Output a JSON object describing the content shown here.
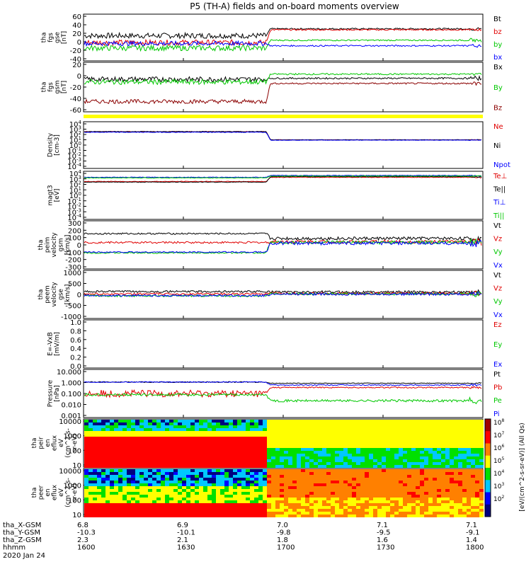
{
  "title": "P5 (TH-A) fields and on-board moments overview",
  "footer": {
    "rows": [
      {
        "label": "tha_X-GSM",
        "values": [
          "6.8",
          "6.9",
          "7.0",
          "7.1",
          "7.1"
        ]
      },
      {
        "label": "tha_Y-GSM",
        "values": [
          "-10.3",
          "-10.1",
          "-9.8",
          "-9.5",
          "-9.1"
        ]
      },
      {
        "label": "tha_Z-GSM",
        "values": [
          "2.3",
          "2.1",
          "1.8",
          "1.6",
          "1.4"
        ]
      },
      {
        "label": "hhmm",
        "values": [
          "1600",
          "1630",
          "1700",
          "1730",
          "1800"
        ]
      }
    ],
    "date": "2020 Jan 24"
  },
  "colors": {
    "black": "#000000",
    "red": "#e00000",
    "green": "#00c800",
    "blue": "#0000ff",
    "maroon": "#8b0000",
    "yellow": "#ffff00"
  },
  "colorbar": {
    "ticks": [
      "10^8",
      "10^7",
      "10^6",
      "10^5",
      "10^4",
      "10^3",
      "10^2"
    ],
    "label": "[eV/(cm^2-s-sr-eV)] (All Qs)"
  },
  "chart_data": [
    {
      "type": "line",
      "id": "fgs-gse",
      "ylabel_lines": [
        "tha",
        "fgs",
        "gse",
        "[nT]"
      ],
      "yticks": [
        "60",
        "40",
        "20",
        "0",
        "-20",
        "-40"
      ],
      "ylim": [
        -40,
        62
      ],
      "series": [
        {
          "name": "Bt",
          "color": "#000000",
          "pre": 15,
          "post": 30,
          "noise_pre": 6,
          "noise_post": 1.5
        },
        {
          "name": "bz",
          "color": "#e00000",
          "pre": 0,
          "post": 28,
          "noise_pre": 6,
          "noise_post": 1.5
        },
        {
          "name": "by",
          "color": "#00c800",
          "pre": -12,
          "post": 5,
          "noise_pre": 6,
          "noise_post": 1.5
        },
        {
          "name": "bx",
          "color": "#0000ff",
          "pre": -2,
          "post": -7,
          "noise_pre": 5,
          "noise_post": 1.5
        }
      ]
    },
    {
      "type": "line",
      "id": "fgs-gsm",
      "ylabel_lines": [
        "tha",
        "fgs",
        "gsm",
        "[nT]"
      ],
      "yticks": [
        "20",
        "0",
        "-20",
        "-40",
        "-60"
      ],
      "ylim": [
        -68,
        28
      ],
      "series": [
        {
          "name": "Bx",
          "color": "#000000",
          "pre": -5,
          "post": -3,
          "noise_pre": 5,
          "noise_post": 1.5
        },
        {
          "name": "By",
          "color": "#00c800",
          "pre": -10,
          "post": 5,
          "noise_pre": 5,
          "noise_post": 1.5
        },
        {
          "name": "Bz",
          "color": "#8b0000",
          "pre": -48,
          "post": -13,
          "noise_pre": 4,
          "noise_post": 1.5
        }
      ]
    },
    {
      "type": "line",
      "id": "density",
      "ylabel_lines": [
        "Density",
        "[cm-3]"
      ],
      "yticks": [
        "10^4",
        "10^3",
        "10^2",
        "10^1",
        "10^0",
        "10^-1",
        "10^-2",
        "10^-3",
        "10^-4"
      ],
      "ylim": [
        -4,
        4
      ],
      "log": true,
      "series": [
        {
          "name": "Ne",
          "color": "#e00000",
          "pre": 2.3,
          "post": 0.9,
          "noise_pre": 0.05,
          "noise_post": 0.03
        },
        {
          "name": "Ni",
          "color": "#000000",
          "pre": 2.3,
          "post": 0.9,
          "noise_pre": 0.05,
          "noise_post": 0.03
        },
        {
          "name": "Npot",
          "color": "#0000ff",
          "pre": 2.2,
          "post": 0.85,
          "noise_pre": 0.05,
          "noise_post": 0.03
        }
      ]
    },
    {
      "type": "line",
      "id": "temperature",
      "ylabel_lines": [
        "magt3",
        "[eV]"
      ],
      "yticks": [
        "10^4",
        "10^3",
        "10^2",
        "10^1",
        "10^0",
        "10^-1",
        "10^-2",
        "10^-3",
        "10^-4"
      ],
      "ylim": [
        -4,
        4
      ],
      "log": true,
      "series": [
        {
          "name": "Te⊥",
          "color": "#e00000",
          "pre": 2.3,
          "post": 3.0,
          "noise_pre": 0.05,
          "noise_post": 0.05
        },
        {
          "name": "Te||",
          "color": "#000000",
          "pre": 2.2,
          "post": 3.1,
          "noise_pre": 0.05,
          "noise_post": 0.05
        },
        {
          "name": "Ti⊥",
          "color": "#0000ff",
          "pre": 3.0,
          "post": 3.3,
          "noise_pre": 0.05,
          "noise_post": 0.05
        },
        {
          "name": "Ti||",
          "color": "#00c800",
          "pre": 2.9,
          "post": 3.2,
          "noise_pre": 0.05,
          "noise_post": 0.05
        }
      ]
    },
    {
      "type": "line",
      "id": "peim-velocity",
      "ylabel_lines": [
        "tha",
        "peim",
        "velocity",
        "gsm",
        "[km/s]"
      ],
      "yticks": [
        "300",
        "200",
        "100",
        "0",
        "-100",
        "-200",
        "-300"
      ],
      "ylim": [
        -300,
        300
      ],
      "series": [
        {
          "name": "Vt",
          "color": "#000000",
          "pre": 140,
          "post": 80,
          "noise_pre": 10,
          "noise_post": 20
        },
        {
          "name": "Vz",
          "color": "#e00000",
          "pre": 30,
          "post": 40,
          "noise_pre": 12,
          "noise_post": 20
        },
        {
          "name": "Vy",
          "color": "#00c800",
          "pre": -100,
          "post": 30,
          "noise_pre": 8,
          "noise_post": 20
        },
        {
          "name": "Vx",
          "color": "#0000ff",
          "pre": -90,
          "post": 20,
          "noise_pre": 8,
          "noise_post": 20
        }
      ]
    },
    {
      "type": "line",
      "id": "peem-velocity",
      "ylabel_lines": [
        "tha",
        "peem",
        "velocity",
        "gse",
        "[km/s]"
      ],
      "yticks": [
        "1000",
        "500",
        "0",
        "-500",
        "-1000"
      ],
      "ylim": [
        -1000,
        1000
      ],
      "series": [
        {
          "name": "Vt",
          "color": "#000000",
          "pre": 120,
          "post": 100,
          "noise_pre": 40,
          "noise_post": 50
        },
        {
          "name": "Vz",
          "color": "#e00000",
          "pre": 20,
          "post": 40,
          "noise_pre": 40,
          "noise_post": 50
        },
        {
          "name": "Vy",
          "color": "#00c800",
          "pre": -60,
          "post": 20,
          "noise_pre": 40,
          "noise_post": 50
        },
        {
          "name": "Vx",
          "color": "#0000ff",
          "pre": -50,
          "post": 10,
          "noise_pre": 40,
          "noise_post": 50
        }
      ]
    },
    {
      "type": "line",
      "id": "efield",
      "ylabel_lines": [
        "E=-VxB",
        "[mV/m]"
      ],
      "yticks": [
        "1.0",
        "0.8",
        "0.6",
        "0.4",
        "0.2",
        "0.0"
      ],
      "ylim": [
        0,
        1
      ],
      "series": [
        {
          "name": "Ez",
          "color": "#e00000"
        },
        {
          "name": "Ey",
          "color": "#00c800"
        },
        {
          "name": "Ex",
          "color": "#0000ff"
        }
      ]
    },
    {
      "type": "line",
      "id": "pressure",
      "ylabel_lines": [
        "Pressure",
        "[nPa]"
      ],
      "yticks": [
        "10.000",
        "1.000",
        "0.100",
        "0.010",
        "0.001"
      ],
      "ylim": [
        -3,
        1
      ],
      "log": true,
      "series": [
        {
          "name": "Pt",
          "color": "#000000",
          "pre": -0.05,
          "post": -0.15,
          "noise_pre": 0.04,
          "noise_post": 0.03
        },
        {
          "name": "Pb",
          "color": "#e00000",
          "pre": -1.0,
          "post": -0.5,
          "noise_pre": 0.3,
          "noise_post": 0.05
        },
        {
          "name": "Pe",
          "color": "#00c800",
          "pre": -1.1,
          "post": -1.6,
          "noise_pre": 0.1,
          "noise_post": 0.1
        },
        {
          "name": "Pi",
          "color": "#0000ff",
          "pre": -0.05,
          "post": -0.3,
          "noise_pre": 0.04,
          "noise_post": 0.04
        }
      ]
    },
    {
      "type": "heatmap",
      "id": "peir",
      "ylabel_lines": [
        "tha",
        "peir",
        "en",
        "eflux",
        "eV",
        "(cm^2-s-",
        "sr-eV)"
      ],
      "yticks": [
        "10000",
        "1000",
        "100",
        "10"
      ],
      "ylim": [
        5,
        25000
      ]
    },
    {
      "type": "heatmap",
      "id": "peer",
      "ylabel_lines": [
        "tha",
        "peer",
        "en",
        "eflux",
        "eV",
        "(cm^2-s-",
        "sr-eV)"
      ],
      "yticks": [
        "10000",
        "1000",
        "100",
        "10"
      ],
      "ylim": [
        5,
        25000
      ]
    }
  ]
}
